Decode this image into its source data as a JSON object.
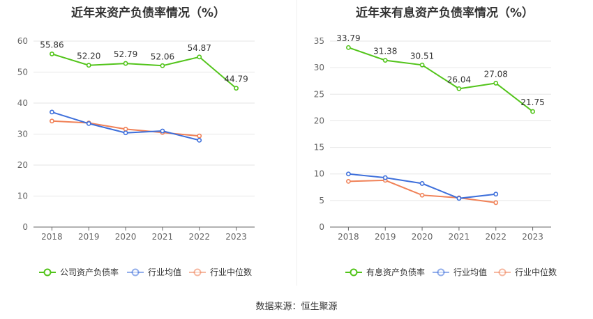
{
  "footer": {
    "source": "数据来源：恒生聚源"
  },
  "chart_data": [
    {
      "type": "line",
      "title": "近年来资产负债率情况（%）",
      "categories": [
        "2018",
        "2019",
        "2020",
        "2021",
        "2022",
        "2023"
      ],
      "yticks": [
        "0",
        "10",
        "20",
        "30",
        "40",
        "50",
        "60"
      ],
      "ylim": [
        0,
        60
      ],
      "grid": true,
      "legend_position": "bottom",
      "series": [
        {
          "name": "公司资产负债率",
          "color": "#52c41a",
          "values": [
            55.86,
            52.2,
            52.79,
            52.06,
            54.87,
            44.79
          ],
          "labels": [
            "55.86",
            "52.20",
            "52.79",
            "52.06",
            "54.87",
            "44.79"
          ]
        },
        {
          "name": "行业均值",
          "color": "#3d6fdb",
          "values": [
            37.1,
            33.4,
            30.4,
            31.0,
            28.0,
            null
          ]
        },
        {
          "name": "行业中位数",
          "color": "#f08157",
          "values": [
            34.2,
            33.6,
            31.6,
            30.5,
            29.4,
            null
          ]
        }
      ]
    },
    {
      "type": "line",
      "title": "近年来有息资产负债率情况（%）",
      "categories": [
        "2018",
        "2019",
        "2020",
        "2021",
        "2022",
        "2023"
      ],
      "yticks": [
        "0",
        "5",
        "10",
        "15",
        "20",
        "25",
        "30",
        "35"
      ],
      "ylim": [
        0,
        35
      ],
      "grid": true,
      "legend_position": "bottom",
      "series": [
        {
          "name": "有息资产负债率",
          "color": "#52c41a",
          "values": [
            33.79,
            31.38,
            30.51,
            26.04,
            27.08,
            21.75
          ],
          "labels": [
            "33.79",
            "31.38",
            "30.51",
            "26.04",
            "27.08",
            "21.75"
          ]
        },
        {
          "name": "行业均值",
          "color": "#3d6fdb",
          "values": [
            10.0,
            9.3,
            8.2,
            5.4,
            6.2,
            null
          ]
        },
        {
          "name": "行业中位数",
          "color": "#f08157",
          "values": [
            8.6,
            8.8,
            6.0,
            5.5,
            4.6,
            null
          ]
        }
      ]
    }
  ]
}
